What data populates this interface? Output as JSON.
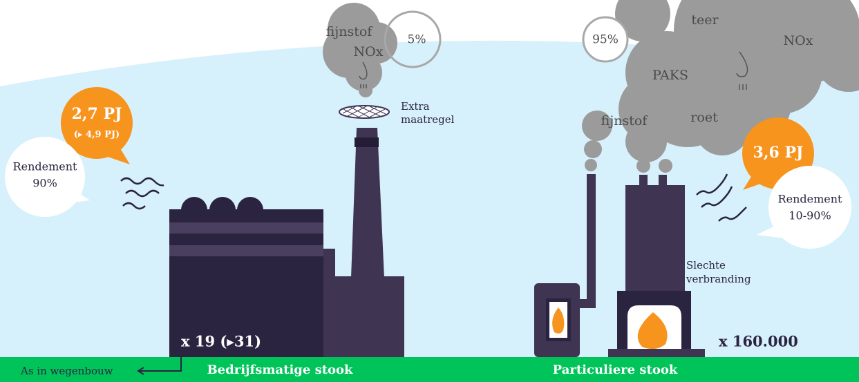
{
  "left": {
    "energy": "2,7 PJ",
    "energy_alt": "(▸ 4,9 PJ)",
    "efficiency_label": "Rendement",
    "efficiency_value": "90%",
    "smoke": {
      "labels": [
        "fijnstof",
        "NOx"
      ],
      "share": "5%"
    },
    "filter": [
      "Extra",
      "maatregel"
    ],
    "count": "x 19 (▸31)",
    "label": "Bedrijfsmatige stook",
    "ash": "As in wegenbouw"
  },
  "right": {
    "energy": "3,6 PJ",
    "efficiency_label": "Rendement",
    "efficiency_value": "10-90%",
    "smoke": {
      "labels": [
        "teer",
        "NOx",
        "PAKS",
        "fijnstof",
        "roet"
      ],
      "share": "95%"
    },
    "combustion": [
      "Slechte",
      "verbranding"
    ],
    "count": "x 160.000",
    "label": "Particuliere stook"
  }
}
